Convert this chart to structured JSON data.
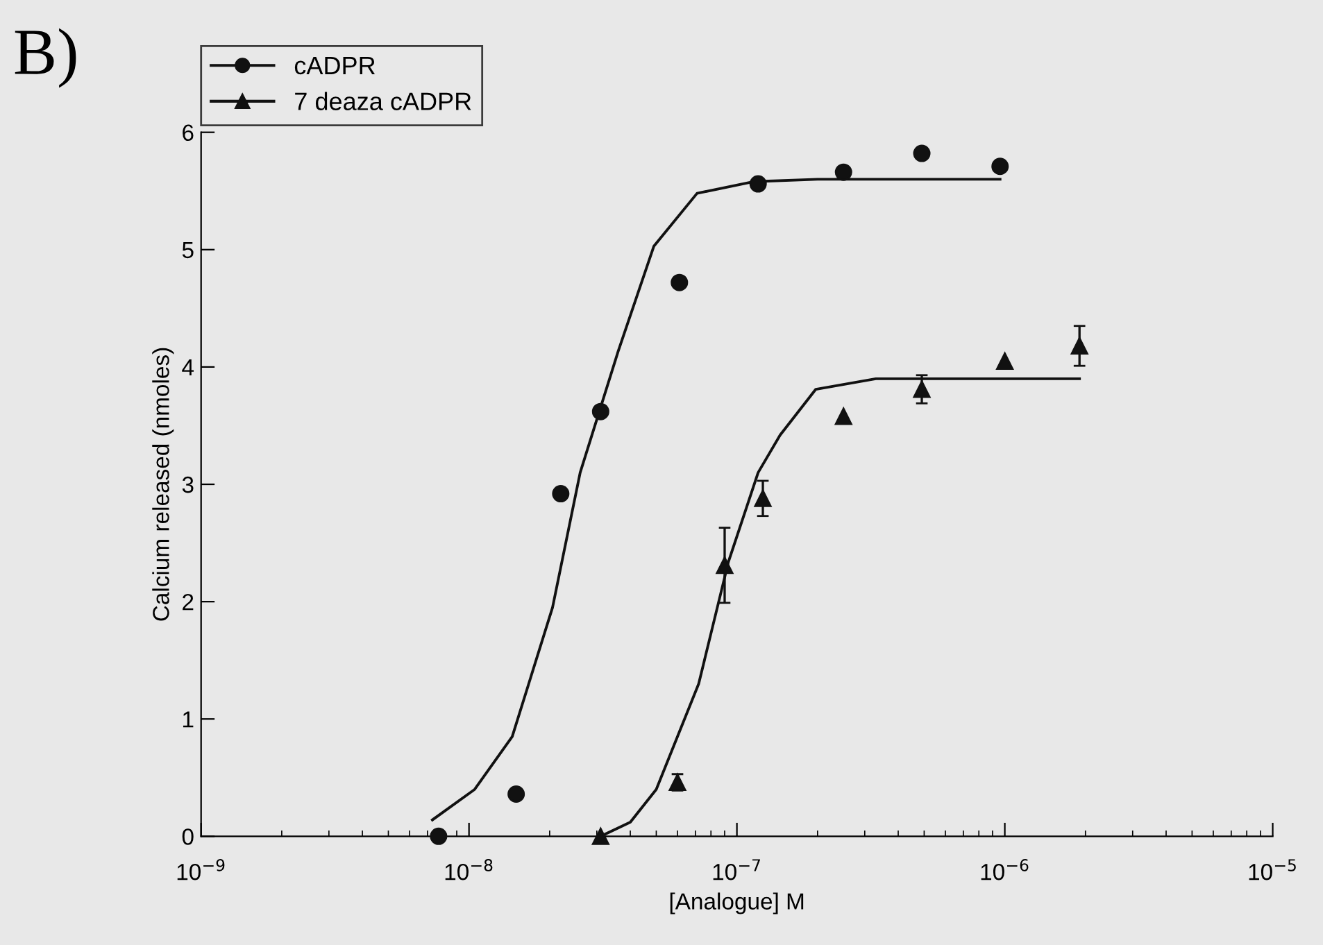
{
  "chart_data": {
    "type": "scatter",
    "xlabel": "[Analogue] M",
    "ylabel": "Calcium released (nmoles)",
    "annotations": [
      "B)"
    ],
    "log": "x",
    "xlim": [
      1e-09,
      1e-05
    ],
    "xticks": [
      {
        "value": 1e-09,
        "label": "10$^{−9}$"
      },
      {
        "value": 1e-08,
        "label": "10$^{−8}$"
      },
      {
        "value": 1e-07,
        "label": "10$^{−7}$"
      },
      {
        "value": 1e-06,
        "label": "10$^{−6}$"
      },
      {
        "value": 1e-05,
        "label": "10$^{−5}$"
      }
    ],
    "ylim": [
      0,
      6
    ],
    "yticks": [
      0,
      1,
      2,
      3,
      4,
      5,
      6
    ],
    "grid": false,
    "legend": "top left",
    "series": [
      {
        "name": "cADPR",
        "marker": "circle",
        "color": "#111111",
        "x": [
          7.7e-09,
          1.5e-08,
          2.2e-08,
          3.1e-08,
          6.1e-08,
          1.2e-07,
          2.5e-07,
          4.9e-07,
          9.6e-07
        ],
        "values": [
          0,
          0.36,
          2.92,
          3.62,
          4.72,
          5.56,
          5.66,
          5.82,
          5.71
        ]
      },
      {
        "name": "7 deaza cADPR",
        "marker": "triangle",
        "color": "#111111",
        "x": [
          3.1e-08,
          6e-08,
          9e-08,
          1.25e-07,
          2.5e-07,
          4.9e-07,
          1e-06,
          1.9e-06
        ],
        "values": [
          0,
          0.46,
          2.31,
          2.88,
          3.58,
          3.81,
          4.05,
          4.18
        ],
        "errors": [
          null,
          0.07,
          0.32,
          0.15,
          null,
          0.12,
          null,
          0.17
        ]
      },
      {
        "type": "line",
        "marker": "none",
        "line_style": "solid",
        "color": "#111111",
        "x": [
          7.3e-09,
          1.05e-08,
          1.45e-08,
          2.05e-08,
          2.6e-08,
          3.6e-08,
          4.9e-08,
          7.1e-08,
          1.16e-07,
          2e-07,
          9.6e-07
        ],
        "values": [
          0.14,
          0.4,
          0.85,
          1.95,
          3.1,
          4.13,
          5.03,
          5.48,
          5.58,
          5.6,
          5.6
        ]
      },
      {
        "type": "line",
        "marker": "none",
        "line_style": "solid",
        "color": "#111111",
        "x": [
          3.1e-08,
          4e-08,
          5e-08,
          7.2e-08,
          9.3e-08,
          1.2e-07,
          1.45e-07,
          1.97e-07,
          3.3e-07,
          1.9e-06
        ],
        "values": [
          0,
          0.12,
          0.4,
          1.3,
          2.34,
          3.1,
          3.42,
          3.81,
          3.9,
          3.9
        ]
      }
    ]
  }
}
